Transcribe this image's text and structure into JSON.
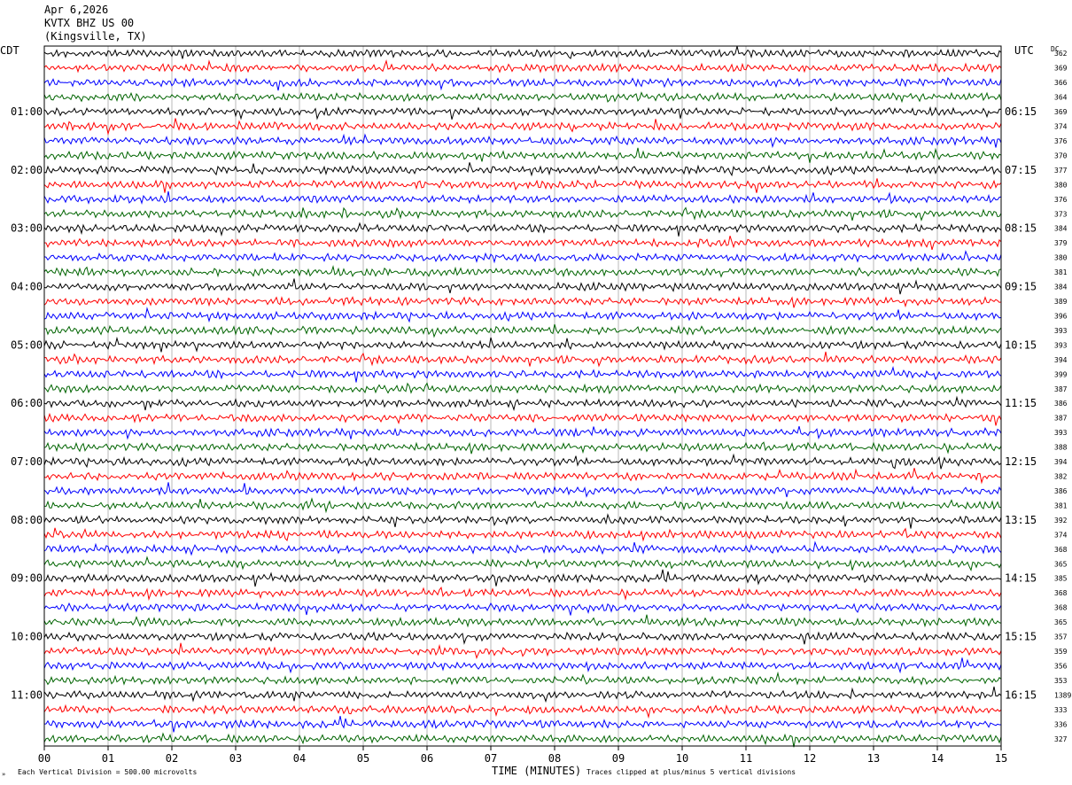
{
  "header": {
    "date": "Apr 6,2026",
    "station": "KVTX BHZ US 00",
    "location": "(Kingsville, TX)"
  },
  "chart_data": {
    "type": "line",
    "title": "KVTX BHZ US 00",
    "left_axis_label": "CDT",
    "right_axis_label": "UTC",
    "dc_label": "DC",
    "xlabel": "TIME (MINUTES)",
    "xlim": [
      0,
      15
    ],
    "x_ticks": [
      "00",
      "01",
      "02",
      "03",
      "04",
      "05",
      "06",
      "07",
      "08",
      "09",
      "10",
      "11",
      "12",
      "13",
      "14",
      "15"
    ],
    "trace_minutes": 15,
    "trace_count": 48,
    "trace_colors": [
      "#000000",
      "#ff0000",
      "#0000ff",
      "#006400"
    ],
    "left_hour_labels": [
      "01:00",
      "02:00",
      "03:00",
      "04:00",
      "05:00",
      "06:00",
      "07:00",
      "08:00",
      "09:00",
      "10:00",
      "11:00"
    ],
    "right_hour_labels": [
      "06:15",
      "07:15",
      "08:15",
      "09:15",
      "10:15",
      "11:15",
      "12:15",
      "13:15",
      "14:15",
      "15:15",
      "16:15"
    ],
    "dc_offsets": [
      362,
      369,
      366,
      364,
      369,
      374,
      376,
      370,
      377,
      380,
      376,
      373,
      384,
      379,
      380,
      381,
      384,
      389,
      396,
      393,
      393,
      394,
      399,
      387,
      386,
      387,
      393,
      388,
      394,
      382,
      386,
      381,
      392,
      374,
      368,
      365,
      385,
      368,
      368,
      365,
      357,
      359,
      356,
      353,
      1389,
      333,
      336,
      327
    ],
    "grid": true
  },
  "footer": {
    "scale_note": "Each Vertical Division =  500.00 microvolts",
    "clip_note": "Traces clipped at plus/minus 5 vertical divisions"
  }
}
